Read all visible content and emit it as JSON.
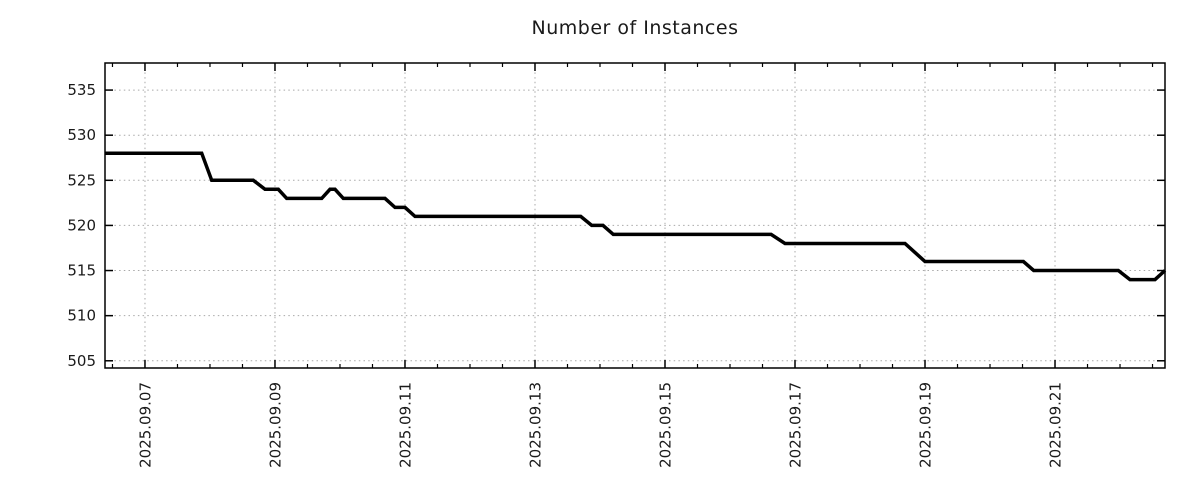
{
  "page": {
    "background": "#ffffff"
  },
  "chart_data": {
    "type": "line",
    "title": "Number of Instances",
    "legend": {
      "show": false
    },
    "grid": {
      "show": true,
      "style": "dotted",
      "color": "#a9a9a9"
    },
    "axis_color": "#000000",
    "text_color": "#1a1a1a",
    "x_axis": {
      "unit": "days since 2025.09.07 00:00",
      "range": [
        -0.615,
        15.692
      ],
      "minor_tick_interval": 0.5,
      "major_ticks": [
        {
          "t": 0,
          "label": "2025.09.07"
        },
        {
          "t": 2,
          "label": "2025.09.09"
        },
        {
          "t": 4,
          "label": "2025.09.11"
        },
        {
          "t": 6,
          "label": "2025.09.13"
        },
        {
          "t": 8,
          "label": "2025.09.15"
        },
        {
          "t": 10,
          "label": "2025.09.17"
        },
        {
          "t": 12,
          "label": "2025.09.19"
        },
        {
          "t": 14,
          "label": "2025.09.21"
        }
      ]
    },
    "y_axis": {
      "range": [
        504.2,
        538.0
      ],
      "ticks": [
        505,
        510,
        515,
        520,
        525,
        530,
        535
      ]
    },
    "series": [
      {
        "name": "instances",
        "color": "#000000",
        "line_width": 3.5,
        "points": [
          [
            -0.615,
            528
          ],
          [
            0.872,
            528
          ],
          [
            1.026,
            525
          ],
          [
            1.667,
            525
          ],
          [
            1.846,
            524
          ],
          [
            2.051,
            524
          ],
          [
            2.18,
            523
          ],
          [
            2.718,
            523
          ],
          [
            2.846,
            524
          ],
          [
            2.923,
            524
          ],
          [
            3.051,
            523
          ],
          [
            3.692,
            523
          ],
          [
            3.846,
            522
          ],
          [
            4.0,
            522
          ],
          [
            4.154,
            521
          ],
          [
            6.703,
            521
          ],
          [
            6.872,
            520
          ],
          [
            7.046,
            520
          ],
          [
            7.205,
            519
          ],
          [
            9.632,
            519
          ],
          [
            9.846,
            518
          ],
          [
            11.692,
            518
          ],
          [
            12.0,
            516
          ],
          [
            13.513,
            516
          ],
          [
            13.672,
            515
          ],
          [
            14.974,
            515
          ],
          [
            15.154,
            514
          ],
          [
            15.538,
            514
          ],
          [
            15.692,
            515
          ]
        ]
      }
    ]
  }
}
